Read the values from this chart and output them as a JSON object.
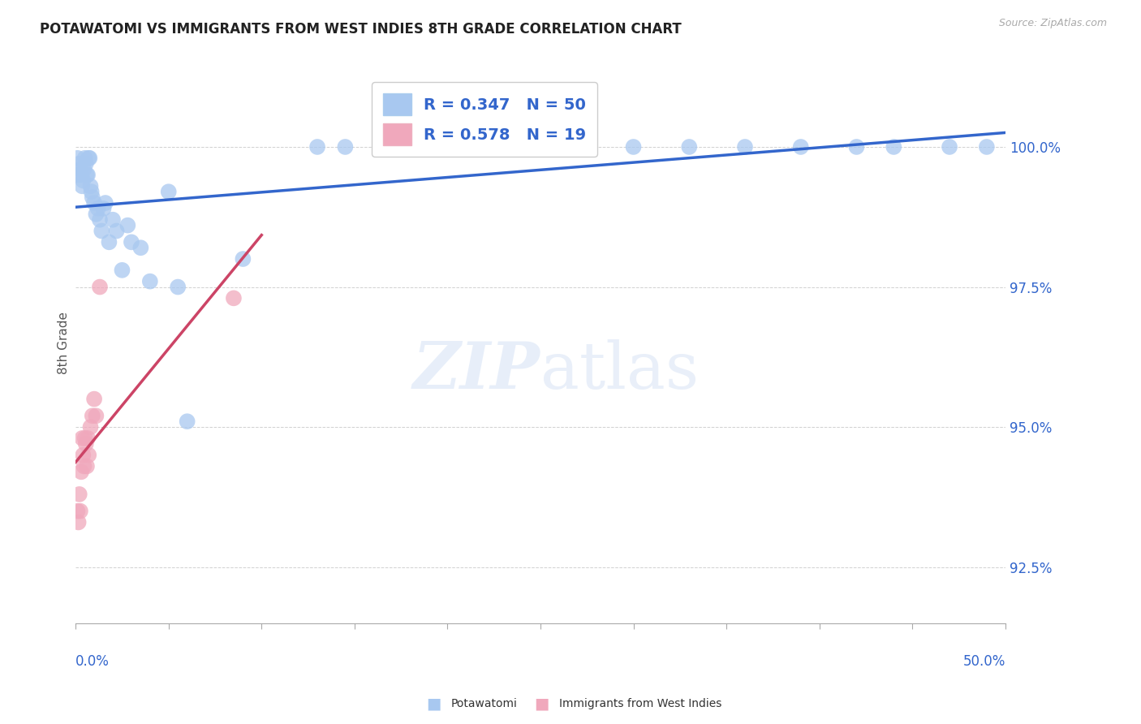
{
  "title": "POTAWATOMI VS IMMIGRANTS FROM WEST INDIES 8TH GRADE CORRELATION CHART",
  "source": "Source: ZipAtlas.com",
  "ylabel": "8th Grade",
  "yticks": [
    92.5,
    95.0,
    97.5,
    100.0
  ],
  "ytick_labels": [
    "92.5%",
    "95.0%",
    "97.5%",
    "100.0%"
  ],
  "xlim": [
    0.0,
    50.0
  ],
  "ylim": [
    91.5,
    101.5
  ],
  "watermark_zip": "ZIP",
  "watermark_atlas": "atlas",
  "legend1_r": "0.347",
  "legend1_n": "50",
  "legend2_r": "0.578",
  "legend2_n": "19",
  "blue_color": "#a8c8f0",
  "pink_color": "#f0a8bc",
  "blue_line_color": "#3366cc",
  "pink_line_color": "#cc4466",
  "label_color": "#3366cc",
  "grid_color": "#cccccc",
  "potawatomi_x": [
    0.1,
    0.15,
    0.2,
    0.25,
    0.3,
    0.35,
    0.4,
    0.45,
    0.5,
    0.55,
    0.6,
    0.65,
    0.7,
    0.75,
    0.8,
    0.85,
    0.9,
    1.0,
    1.1,
    1.2,
    1.3,
    1.4,
    1.5,
    1.6,
    1.8,
    2.0,
    2.2,
    2.5,
    2.8,
    3.0,
    3.5,
    4.0,
    5.0,
    5.5,
    6.0,
    9.0,
    13.0,
    14.5,
    20.0,
    22.0,
    25.0,
    27.0,
    30.0,
    33.0,
    36.0,
    39.0,
    42.0,
    44.0,
    47.0,
    49.0
  ],
  "potawatomi_y": [
    99.8,
    99.5,
    99.7,
    99.6,
    99.5,
    99.3,
    99.4,
    99.6,
    99.8,
    99.7,
    99.5,
    99.5,
    99.8,
    99.8,
    99.3,
    99.2,
    99.1,
    99.0,
    98.8,
    98.9,
    98.7,
    98.5,
    98.9,
    99.0,
    98.3,
    98.7,
    98.5,
    97.8,
    98.6,
    98.3,
    98.2,
    97.6,
    99.2,
    97.5,
    95.1,
    98.0,
    100.0,
    100.0,
    100.0,
    100.0,
    100.0,
    100.0,
    100.0,
    100.0,
    100.0,
    100.0,
    100.0,
    100.0,
    100.0,
    100.0
  ],
  "westindies_x": [
    0.1,
    0.15,
    0.2,
    0.25,
    0.3,
    0.35,
    0.4,
    0.45,
    0.5,
    0.55,
    0.6,
    0.65,
    0.7,
    0.8,
    0.9,
    1.0,
    1.1,
    1.3,
    8.5
  ],
  "westindies_y": [
    93.5,
    93.3,
    93.8,
    93.5,
    94.2,
    94.8,
    94.5,
    94.3,
    94.8,
    94.7,
    94.3,
    94.8,
    94.5,
    95.0,
    95.2,
    95.5,
    95.2,
    97.5,
    97.3
  ]
}
